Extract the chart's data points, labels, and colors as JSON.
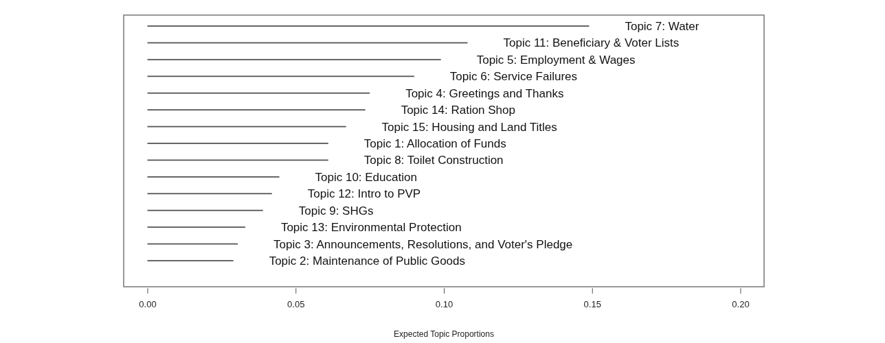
{
  "chart_data": {
    "type": "bar",
    "orientation": "horizontal",
    "xlabel": "Expected Topic Proportions",
    "categories": [
      "Topic 7: Water",
      "Topic 11: Beneficiary & Voter Lists",
      "Topic 5: Employment & Wages",
      "Topic 6: Service Failures",
      "Topic 4: Greetings and Thanks",
      "Topic 14: Ration Shop",
      "Topic 15: Housing and Land Titles",
      "Topic 1: Allocation of Funds",
      "Topic 8: Toilet Construction",
      "Topic 10: Education",
      "Topic 12: Intro to PVP",
      "Topic 9: SHGs",
      "Topic 13: Environmental Protection",
      "Topic 3: Announcements, Resolutions, and Voter's Pledge",
      "Topic 2: Maintenance of Public Goods"
    ],
    "values": [
      0.149,
      0.108,
      0.099,
      0.09,
      0.075,
      0.0735,
      0.067,
      0.061,
      0.061,
      0.0445,
      0.042,
      0.039,
      0.033,
      0.0305,
      0.029
    ],
    "color": "#555555",
    "xlim": [
      -0.008,
      0.208
    ],
    "xticks": [
      {
        "value": 0,
        "label": "0.00"
      },
      {
        "value": 0.05,
        "label": "0.05"
      },
      {
        "value": 0.1,
        "label": "0.10"
      },
      {
        "value": 0.15,
        "label": "0.15"
      },
      {
        "value": 0.2,
        "label": "0.20"
      }
    ],
    "grid": false
  }
}
